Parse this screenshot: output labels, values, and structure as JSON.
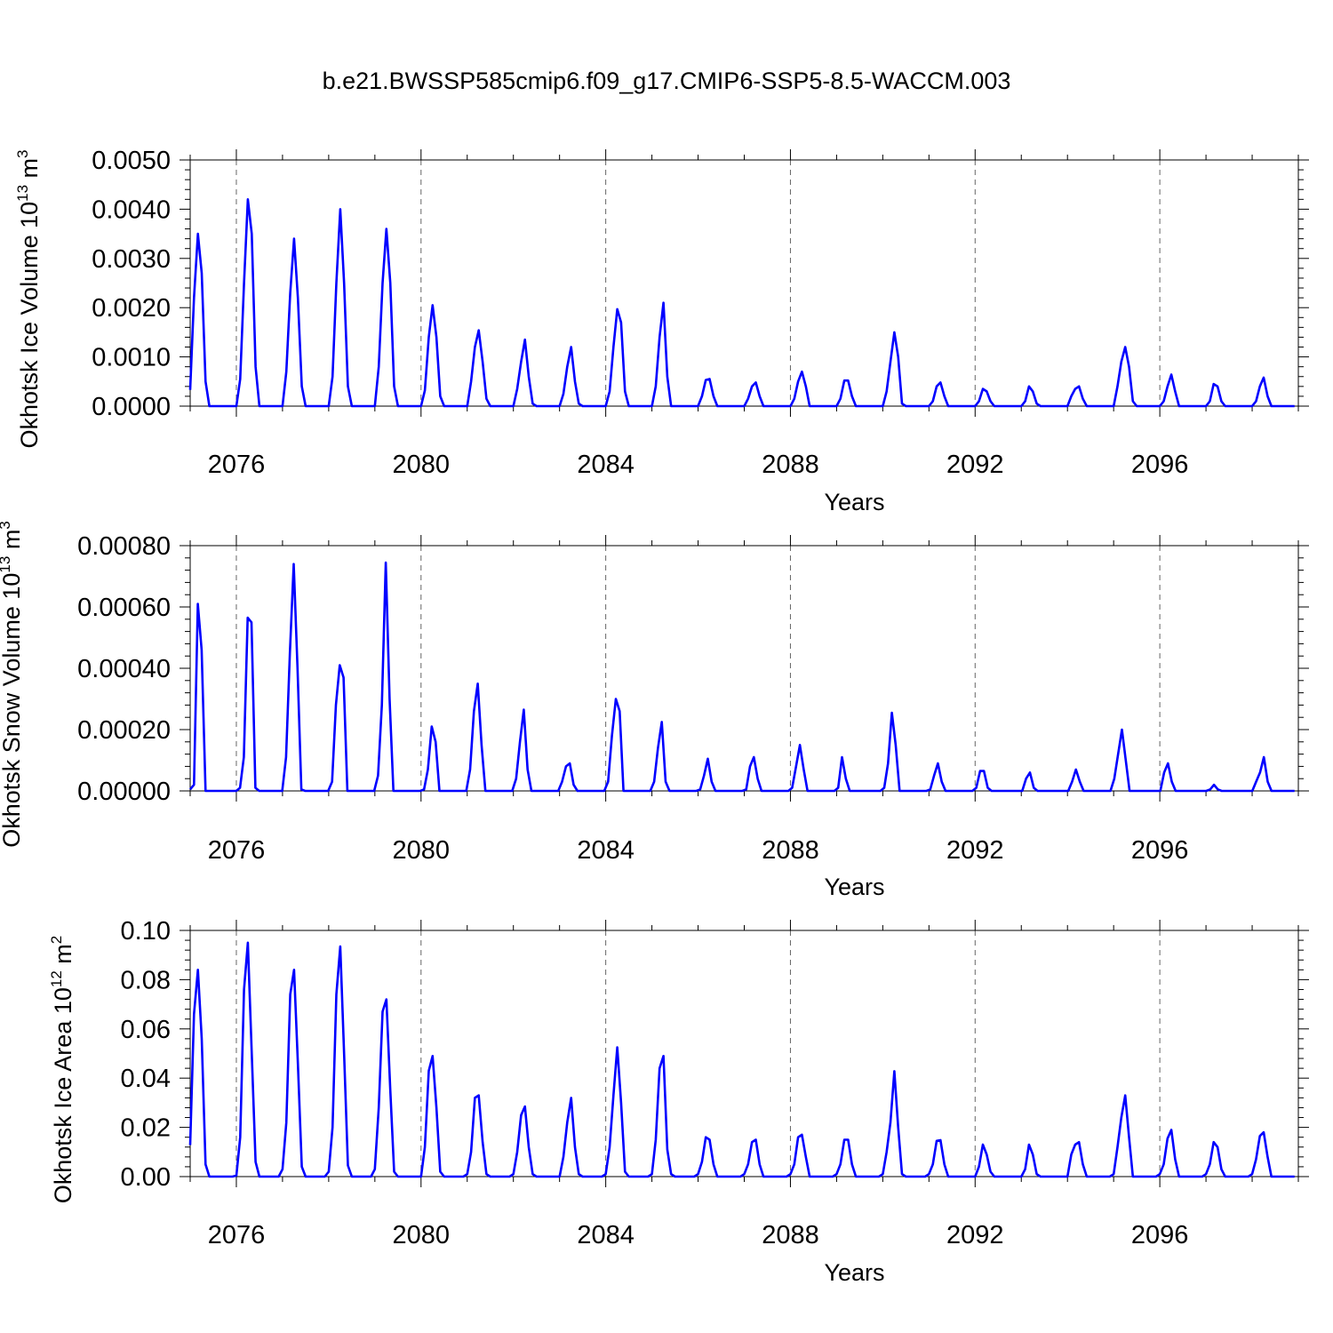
{
  "title": "b.e21.BWSSP585cmip6.f09_g17.CMIP6-SSP5-8.5-WACCM.003",
  "chart_data": [
    {
      "type": "line",
      "xlabel": "Years",
      "ylabel_text": "Okhotsk Ice Volume 10",
      "ylabel_exp": "13",
      "ylabel_unit": " m",
      "ylabel_unit_exp": "3",
      "xlim": [
        2075.0,
        2099.0
      ],
      "ylim": [
        0.0,
        0.005
      ],
      "x_ticks": [
        2076,
        2080,
        2084,
        2088,
        2092,
        2096
      ],
      "x_tick_labels": [
        "2076",
        "2080",
        "2084",
        "2088",
        "2092",
        "2096"
      ],
      "y_ticks": [
        0.0,
        0.001,
        0.002,
        0.003,
        0.004,
        0.005
      ],
      "y_tick_labels": [
        "0.0000",
        "0.0010",
        "0.0020",
        "0.0030",
        "0.0040",
        "0.0050"
      ],
      "y_minor_step": 0.0002,
      "line_color": "#0000ff",
      "series": [
        {
          "name": "Okhotsk Ice Volume",
          "values": [
            0.00033,
            0.0022,
            0.0035,
            0.0027,
            0.0005,
            0,
            0,
            0,
            0,
            0,
            0,
            0,
            0,
            0.00055,
            0.0025,
            0.0042,
            0.0035,
            0.0008,
            0,
            0,
            0,
            0,
            0,
            0,
            0,
            0.0007,
            0.0023,
            0.0034,
            0.0022,
            0.0004,
            0,
            0,
            0,
            0,
            0,
            0,
            0,
            0.0006,
            0.0025,
            0.004,
            0.0025,
            0.0004,
            0,
            0,
            0,
            0,
            0,
            0,
            0,
            0.0008,
            0.0025,
            0.0036,
            0.0025,
            0.0004,
            0,
            0,
            0,
            0,
            0,
            0,
            0,
            0.00032,
            0.0014,
            0.00205,
            0.0014,
            0.0002,
            0,
            0,
            0,
            0,
            0,
            0,
            0,
            0.0005,
            0.0012,
            0.00154,
            0.0009,
            0.00015,
            0,
            0,
            0,
            0,
            0,
            0,
            0,
            0.00035,
            0.0009,
            0.00135,
            0.0006,
            5e-05,
            0,
            0,
            0,
            0,
            0,
            0,
            0,
            0.00025,
            0.0008,
            0.0012,
            0.0005,
            5e-05,
            0,
            0,
            0,
            0,
            0,
            0,
            0,
            0.0003,
            0.0012,
            0.00197,
            0.0017,
            0.0003,
            0,
            0,
            0,
            0,
            0,
            0,
            0,
            0.0004,
            0.0014,
            0.0021,
            0.0006,
            0,
            0,
            0,
            0,
            0,
            0,
            0,
            0,
            0.0002,
            0.00053,
            0.00055,
            0.0002,
            0,
            0,
            0,
            0,
            0,
            0,
            0,
            0,
            0.00015,
            0.0004,
            0.00048,
            0.0002,
            0,
            0,
            0,
            0,
            0,
            0,
            0,
            0,
            0.00015,
            0.0005,
            0.0007,
            0.0004,
            0,
            0,
            0,
            0,
            0,
            0,
            0,
            0,
            0.00015,
            0.00052,
            0.00052,
            0.0002,
            0,
            0,
            0,
            0,
            0,
            0,
            0,
            0,
            0.0003,
            0.0009,
            0.0015,
            0.001,
            5e-05,
            0,
            0,
            0,
            0,
            0,
            0,
            0,
            0.0001,
            0.0004,
            0.00048,
            0.0002,
            0,
            0,
            0,
            0,
            0,
            0,
            0,
            0,
            0.0001,
            0.00035,
            0.0003,
            0.0001,
            0,
            0,
            0,
            0,
            0,
            0,
            0,
            0,
            0.0001,
            0.0004,
            0.0003,
            5e-05,
            0,
            0,
            0,
            0,
            0,
            0,
            0,
            0,
            0.0002,
            0.00035,
            0.0004,
            0.00015,
            0,
            0,
            0,
            0,
            0,
            0,
            0,
            0,
            0.0004,
            0.0009,
            0.0012,
            0.0008,
            0.0001,
            0,
            0,
            0,
            0,
            0,
            0,
            0,
            0.0001,
            0.0004,
            0.00064,
            0.0003,
            0,
            0,
            0,
            0,
            0,
            0,
            0,
            0,
            0.0001,
            0.00045,
            0.0004,
            0.0001,
            0,
            0,
            0,
            0,
            0,
            0,
            0,
            0,
            0.0001,
            0.0004,
            0.00058,
            0.0002,
            0,
            0,
            0,
            0,
            0,
            0,
            0
          ]
        }
      ]
    },
    {
      "type": "line",
      "xlabel": "Years",
      "ylabel_text": "Okhotsk Snow Volume 10",
      "ylabel_exp": "13",
      "ylabel_unit": " m",
      "ylabel_unit_exp": "3",
      "xlim": [
        2075.0,
        2099.0
      ],
      "ylim": [
        0.0,
        0.0008
      ],
      "x_ticks": [
        2076,
        2080,
        2084,
        2088,
        2092,
        2096
      ],
      "x_tick_labels": [
        "2076",
        "2080",
        "2084",
        "2088",
        "2092",
        "2096"
      ],
      "y_ticks": [
        0.0,
        0.0002,
        0.0004,
        0.0006,
        0.0008
      ],
      "y_tick_labels": [
        "0.00000",
        "0.00020",
        "0.00040",
        "0.00060",
        "0.00080"
      ],
      "y_minor_step": 4e-05,
      "line_color": "#0000ff",
      "series": [
        {
          "name": "Okhotsk Snow Volume",
          "values": [
            5e-06,
            2e-05,
            0.00061,
            0.00046,
            0,
            0,
            0,
            0,
            0,
            0,
            0,
            0,
            0,
            1e-05,
            0.00011,
            0.000565,
            0.00055,
            1e-05,
            0,
            0,
            0,
            0,
            0,
            0,
            0,
            0.00011,
            0.00045,
            0.00074,
            0.0004,
            5e-06,
            0,
            0,
            0,
            0,
            0,
            0,
            0,
            3e-05,
            0.00028,
            0.00041,
            0.00037,
            0,
            0,
            0,
            0,
            0,
            0,
            0,
            0,
            5e-05,
            0.00028,
            0.000745,
            0.0003,
            0,
            0,
            0,
            0,
            0,
            0,
            0,
            0,
            5e-06,
            7e-05,
            0.00021,
            0.00016,
            0,
            0,
            0,
            0,
            0,
            0,
            0,
            0,
            7e-05,
            0.00026,
            0.00035,
            0.00015,
            0,
            0,
            0,
            0,
            0,
            0,
            0,
            0,
            4e-05,
            0.00016,
            0.000265,
            7e-05,
            0,
            0,
            0,
            0,
            0,
            0,
            0,
            0,
            3e-05,
            8e-05,
            9e-05,
            2e-05,
            0,
            0,
            0,
            0,
            0,
            0,
            0,
            0,
            3e-05,
            0.00018,
            0.0003,
            0.00026,
            0,
            0,
            0,
            0,
            0,
            0,
            0,
            0,
            3e-05,
            0.00014,
            0.000225,
            3e-05,
            0,
            0,
            0,
            0,
            0,
            0,
            0,
            0,
            5e-06,
            5e-05,
            0.000105,
            3e-05,
            0,
            0,
            0,
            0,
            0,
            0,
            0,
            0,
            5e-06,
            8e-05,
            0.00011,
            4e-05,
            0,
            0,
            0,
            0,
            0,
            0,
            0,
            0,
            1e-05,
            8e-05,
            0.00015,
            7e-05,
            0,
            0,
            0,
            0,
            0,
            0,
            0,
            0,
            1e-05,
            0.00011,
            4e-05,
            0,
            0,
            0,
            0,
            0,
            0,
            0,
            0,
            0,
            1e-05,
            9e-05,
            0.000255,
            0.00015,
            0,
            0,
            0,
            0,
            0,
            0,
            0,
            0,
            5e-06,
            5e-05,
            9e-05,
            3e-05,
            0,
            0,
            0,
            0,
            0,
            0,
            0,
            0,
            1e-05,
            6.5e-05,
            6.5e-05,
            1e-05,
            0,
            0,
            0,
            0,
            0,
            0,
            0,
            0,
            0,
            4e-05,
            6e-05,
            1e-05,
            0,
            0,
            0,
            0,
            0,
            0,
            0,
            0,
            0,
            3e-05,
            7e-05,
            3e-05,
            0,
            0,
            0,
            0,
            0,
            0,
            0,
            0,
            4e-05,
            0.00012,
            0.0002,
            0.0001,
            0,
            0,
            0,
            0,
            0,
            0,
            0,
            0,
            0,
            6e-05,
            9e-05,
            3e-05,
            0,
            0,
            0,
            0,
            0,
            0,
            0,
            0,
            0,
            5e-06,
            2e-05,
            5e-06,
            0,
            0,
            0,
            0,
            0,
            0,
            0,
            0,
            0,
            3e-05,
            6e-05,
            0.00011,
            3e-05,
            0,
            0,
            0,
            0,
            0,
            0,
            0
          ]
        }
      ]
    },
    {
      "type": "line",
      "xlabel": "Years",
      "ylabel_text": "Okhotsk Ice Area 10",
      "ylabel_exp": "12",
      "ylabel_unit": " m",
      "ylabel_unit_exp": "2",
      "xlim": [
        2075.0,
        2099.0
      ],
      "ylim": [
        0.0,
        0.1
      ],
      "x_ticks": [
        2076,
        2080,
        2084,
        2088,
        2092,
        2096
      ],
      "x_tick_labels": [
        "2076",
        "2080",
        "2084",
        "2088",
        "2092",
        "2096"
      ],
      "y_ticks": [
        0.0,
        0.02,
        0.04,
        0.06,
        0.08,
        0.1
      ],
      "y_tick_labels": [
        "0.00",
        "0.02",
        "0.04",
        "0.06",
        "0.08",
        "0.10"
      ],
      "y_minor_step": 0.004,
      "line_color": "#0000ff",
      "series": [
        {
          "name": "Okhotsk Ice Area",
          "values": [
            0.0128,
            0.066,
            0.084,
            0.056,
            0.005,
            0,
            0,
            0,
            0,
            0,
            0,
            0,
            0.0004,
            0.016,
            0.076,
            0.095,
            0.05,
            0.006,
            0,
            0,
            0,
            0,
            0,
            0,
            0.003,
            0.022,
            0.074,
            0.084,
            0.046,
            0.004,
            0,
            0,
            0,
            0,
            0,
            0,
            0.002,
            0.02,
            0.074,
            0.0935,
            0.05,
            0.0045,
            0,
            0,
            0,
            0,
            0,
            0,
            0.003,
            0.028,
            0.067,
            0.072,
            0.035,
            0.002,
            0,
            0,
            0,
            0,
            0,
            0,
            0,
            0.012,
            0.043,
            0.049,
            0.028,
            0.002,
            0,
            0,
            0,
            0,
            0,
            0,
            0.001,
            0.01,
            0.032,
            0.033,
            0.014,
            0.001,
            0,
            0,
            0,
            0,
            0,
            0,
            0.001,
            0.01,
            0.025,
            0.0285,
            0.012,
            0.001,
            0,
            0,
            0,
            0,
            0,
            0,
            0,
            0.008,
            0.022,
            0.032,
            0.012,
            0.001,
            0,
            0,
            0,
            0,
            0,
            0,
            0.001,
            0.012,
            0.033,
            0.0525,
            0.03,
            0.002,
            0,
            0,
            0,
            0,
            0,
            0,
            0.001,
            0.015,
            0.044,
            0.049,
            0.011,
            0.001,
            0,
            0,
            0,
            0,
            0,
            0,
            0.001,
            0.006,
            0.016,
            0.015,
            0.005,
            0,
            0,
            0,
            0,
            0,
            0,
            0,
            0.001,
            0.005,
            0.014,
            0.015,
            0.005,
            0,
            0,
            0,
            0,
            0,
            0,
            0,
            0.001,
            0.005,
            0.016,
            0.017,
            0.008,
            0,
            0,
            0,
            0,
            0,
            0,
            0,
            0.001,
            0.005,
            0.015,
            0.015,
            0.005,
            0,
            0,
            0,
            0,
            0,
            0,
            0,
            0.001,
            0.01,
            0.022,
            0.0428,
            0.02,
            0.001,
            0,
            0,
            0,
            0,
            0,
            0,
            0.001,
            0.005,
            0.0145,
            0.0148,
            0.005,
            0,
            0,
            0,
            0,
            0,
            0,
            0,
            0,
            0.004,
            0.013,
            0.009,
            0.002,
            0,
            0,
            0,
            0,
            0,
            0,
            0,
            0,
            0.003,
            0.013,
            0.009,
            0.001,
            0,
            0,
            0,
            0,
            0,
            0,
            0,
            0,
            0.009,
            0.013,
            0.014,
            0.005,
            0,
            0,
            0,
            0,
            0,
            0,
            0,
            0.001,
            0.012,
            0.024,
            0.033,
            0.016,
            0,
            0,
            0,
            0,
            0,
            0,
            0,
            0.001,
            0.005,
            0.0155,
            0.019,
            0.007,
            0,
            0,
            0,
            0,
            0,
            0,
            0,
            0.001,
            0.005,
            0.014,
            0.012,
            0.003,
            0,
            0,
            0,
            0,
            0,
            0,
            0,
            0.001,
            0.007,
            0.0165,
            0.018,
            0.008,
            0,
            0,
            0,
            0,
            0,
            0,
            0
          ]
        }
      ]
    }
  ]
}
